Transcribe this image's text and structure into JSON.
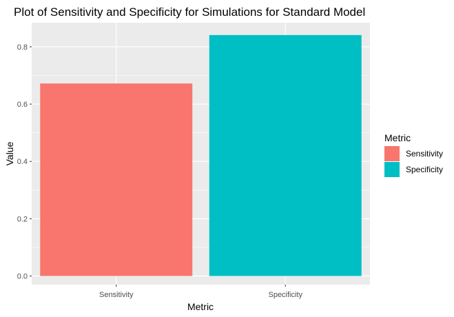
{
  "chart_data": {
    "type": "bar",
    "title": "Plot of Sensitivity and Specificity for Simulations for Standard Model",
    "xlabel": "Metric",
    "ylabel": "Value",
    "categories": [
      "Sensitivity",
      "Specificity"
    ],
    "values": [
      0.672,
      0.841
    ],
    "colors": [
      "#F8766D",
      "#00BFC4"
    ],
    "ylim": [
      -0.03,
      0.884
    ],
    "yticks": [
      0.0,
      0.2,
      0.4,
      0.6,
      0.8
    ],
    "ytick_labels": [
      "0.0",
      "0.2",
      "0.4",
      "0.6",
      "0.8"
    ],
    "grid": true,
    "legend": {
      "title": "Metric",
      "position": "right",
      "entries": [
        "Sensitivity",
        "Specificity"
      ]
    }
  },
  "colors": {
    "panel_background": "#EBEBEB",
    "grid_major": "#FFFFFF",
    "tick_text": "#4D4D4D"
  }
}
